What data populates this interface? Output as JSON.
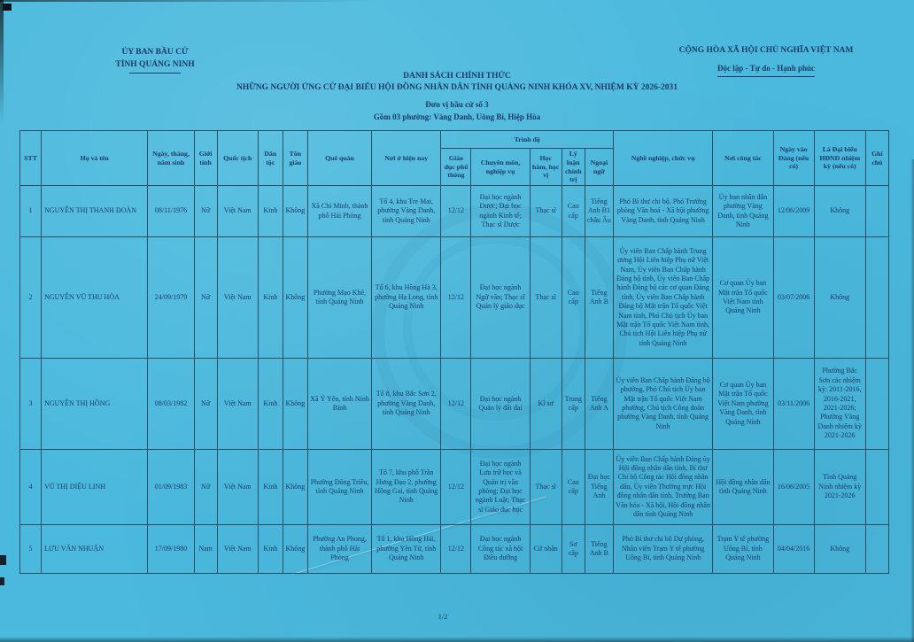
{
  "colors": {
    "paper": "#4ab9dd",
    "ink": "#1c3a66",
    "table_border": "#2e4d63"
  },
  "header": {
    "left_line1": "ỦY BAN BẦU CỬ",
    "left_line2": "TỈNH QUẢNG NINH",
    "right_line1": "CỘNG HÒA XÃ HỘI CHỦ NGHĨA VIỆT NAM",
    "right_line2": "Độc lập - Tự do - Hạnh phúc"
  },
  "title": {
    "line1": "DANH SÁCH CHÍNH THỨC",
    "line2": "NHỮNG NGƯỜI ỨNG CỬ ĐẠI BIỂU HỘI ĐỒNG NHÂN DÂN TỈNH QUẢNG NINH KHÓA XV, NHIỆM KỲ 2026-2031",
    "sub1": "Đơn vị bầu cử số 3",
    "sub2": "Gồm 03 phường: Vàng Danh, Uông Bí, Hiệp Hòa"
  },
  "page_number": "1/2",
  "table": {
    "headers": {
      "stt": "STT",
      "ho_va_ten": "Họ và tên",
      "ngay_sinh": "Ngày, tháng, năm sinh",
      "gioi_tinh": "Giới tính",
      "quoc_tich": "Quốc tịch",
      "dan_toc": "Dân tộc",
      "ton_giao": "Tôn giáo",
      "que_quan": "Quê quán",
      "noi_o": "Nơi ở hiện nay",
      "trinh_do": "Trình độ",
      "gd_pho_thong": "Giáo dục phổ thông",
      "chuyen_mon": "Chuyên môn, nghiệp vụ",
      "hoc_ham": "Học hàm, học vị",
      "ly_luan": "Lý luận chính trị",
      "ngoai_ngu": "Ngoại ngữ",
      "nghe_nghiep": "Nghề nghiệp, chức vụ",
      "noi_cong_tac": "Nơi công tác",
      "ngay_vao_dang": "Ngày vào Đảng (nếu có)",
      "dai_bieu_hdnd": "Là Đại biểu HĐND nhiệm kỳ (nếu có)",
      "ghi_chu": "Ghi chú"
    },
    "rows": [
      [
        "1",
        "NGUYỄN THỊ THANH ĐOÀN",
        "08/11/1976",
        "Nữ",
        "Việt Nam",
        "Kinh",
        "Không",
        "Xã Chí Minh, thành phố Hải Phòng",
        "Tổ 4, khu Tre Mai, phường Vàng Danh, tỉnh Quảng Ninh",
        "12/12",
        "Đại học ngành Dược; Đại học ngành Kinh tế; Thạc sĩ Dược",
        "Thạc sĩ",
        "Cao cấp",
        "Tiếng Anh B1 châu Âu",
        "Phó Bí thư chi bộ, Phó Trưởng phòng Văn hoá - Xã hội phường Vàng Danh, tỉnh Quảng Ninh",
        "Ủy ban nhân dân phường Vàng Danh, tỉnh Quảng Ninh",
        "12/06/2009",
        "Không",
        ""
      ],
      [
        "2",
        "NGUYỄN VŨ THU HÒA",
        "24/09/1979",
        "Nữ",
        "Việt Nam",
        "Kinh",
        "Không",
        "Phường Mạo Khê, tỉnh Quảng Ninh",
        "Tổ 6, khu Hồng Hà 3, phường Hạ Long, tỉnh Quảng Ninh",
        "12/12",
        "Đại học ngành Ngữ văn; Thạc sĩ Quản lý giáo dục",
        "Thạc sĩ",
        "Cao cấp",
        "Tiếng Anh B",
        "Ủy viên Ban Chấp hành Trung ương Hội Liên hiệp Phụ nữ Việt Nam, Ủy viên Ban Chấp hành Đảng bộ tỉnh, Ủy viên Ban Chấp hành Đảng bộ các cơ quan Đảng tỉnh, Ủy viên Ban Chấp hành Đảng bộ Mặt trận Tổ quốc Việt Nam tỉnh, Phó Chủ tịch Ủy ban Mặt trận Tổ quốc Việt Nam tỉnh, Chủ tịch Hội Liên hiệp Phụ nữ tỉnh Quảng Ninh",
        "Cơ quan Ủy ban Mặt trận Tổ quốc Việt Nam tỉnh Quảng Ninh",
        "03/07/2006",
        "Không",
        ""
      ],
      [
        "3",
        "NGUYỄN THỊ HỒNG",
        "08/03/1982",
        "Nữ",
        "Việt Nam",
        "Kinh",
        "Không",
        "Xã Ý Yên, tỉnh Ninh Bình",
        "Tổ 8, khu Bắc Sơn 2, phường Vàng Danh, tỉnh Quảng Ninh",
        "12/12",
        "Đại học ngành Quản lý đất đai",
        "Kĩ sư",
        "Trung cấp",
        "Tiếng Anh A",
        "Ủy viên Ban Chấp hành Đảng bộ phường, Phó Chủ tịch Ủy ban Mặt trận Tổ quốc Việt Nam phường, Chủ tịch Công đoàn phường Vàng Danh, tỉnh Quảng Ninh",
        "Cơ quan Ủy ban Mặt trận Tổ quốc Việt Nam phường Vàng Danh, tỉnh Quảng Ninh",
        "03/11/2006",
        "Phường Bắc Sơn các nhiệm kỳ: 2011-2016, 2016-2021, 2021-2026; Phường Vàng Danh nhiệm kỳ 2021-2026",
        ""
      ],
      [
        "4",
        "VŨ THỊ DIỆU LINH",
        "01/09/1983",
        "Nữ",
        "Việt Nam",
        "Kinh",
        "Không",
        "Phường Đông Triều, tỉnh Quảng Ninh",
        "Tổ 7, khu phố Trần Hưng Đạo 2, phường Hồng Gai, tỉnh Quảng Ninh",
        "12/12",
        "Đại học ngành Lưu trữ học và Quản trị văn phòng; Đại học ngành Luật; Thạc sĩ Giáo dục học",
        "Thạc sĩ",
        "Cao cấp",
        "Đại học Tiếng Anh",
        "Ủy viên Ban Chấp hành Đảng ủy Hội đồng nhân dân tỉnh, Bí thư Chi bộ Công tác Hội đồng nhân dân, Ủy viên Thường trực Hội đồng nhân dân tỉnh, Trưởng Ban Văn hóa - Xã hội, Hội đồng nhân dân tỉnh Quảng Ninh",
        "Hội đồng nhân dân tỉnh Quảng Ninh",
        "16/06/2005",
        "Tỉnh Quảng Ninh nhiệm kỳ 2021-2026",
        ""
      ],
      [
        "5",
        "LƯU VĂN NHUẬN",
        "17/09/1980",
        "Nam",
        "Việt Nam",
        "Kinh",
        "Không",
        "Phường An Phong, thành phố Hải Phòng",
        "Tổ 1, khu Hồng Hải, phường Yên Tử, tỉnh Quảng Ninh",
        "12/12",
        "Đại học ngành Công tác xã hội Điều dưỡng",
        "Cử nhân",
        "Sơ cấp",
        "Tiếng Anh B",
        "Phó Bí thư chi bộ Dự phòng, Nhân viên Trạm Y tế phường Uông Bí, tỉnh Quảng Ninh",
        "Trạm Y tế phường Uông Bí, tỉnh Quảng Ninh",
        "04/04/2016",
        "Không",
        ""
      ]
    ],
    "row_classes": [
      "r1",
      "r2",
      "r3",
      "r4",
      "r5"
    ]
  }
}
